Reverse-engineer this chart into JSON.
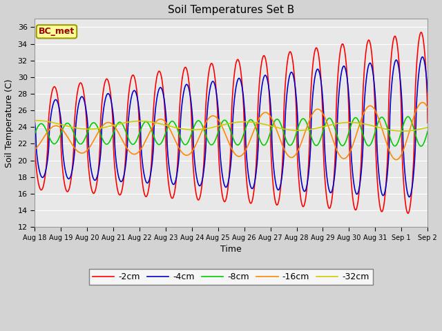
{
  "title": "Soil Temperatures Set B",
  "xlabel": "Time",
  "ylabel": "Soil Temperature (C)",
  "ylim": [
    12,
    37
  ],
  "yticks": [
    12,
    14,
    16,
    18,
    20,
    22,
    24,
    26,
    28,
    30,
    32,
    34,
    36
  ],
  "plot_bg_color": "#e8e8e8",
  "fig_bg_color": "#d3d3d3",
  "line_colors": {
    "-2cm": "#ff0000",
    "-4cm": "#0000cc",
    "-8cm": "#00cc00",
    "-16cm": "#ff8800",
    "-32cm": "#cccc00"
  },
  "legend_label": "BC_met",
  "legend_label_color": "#990000",
  "legend_bg": "#ffff99",
  "legend_border": "#999900",
  "n_points": 1500
}
